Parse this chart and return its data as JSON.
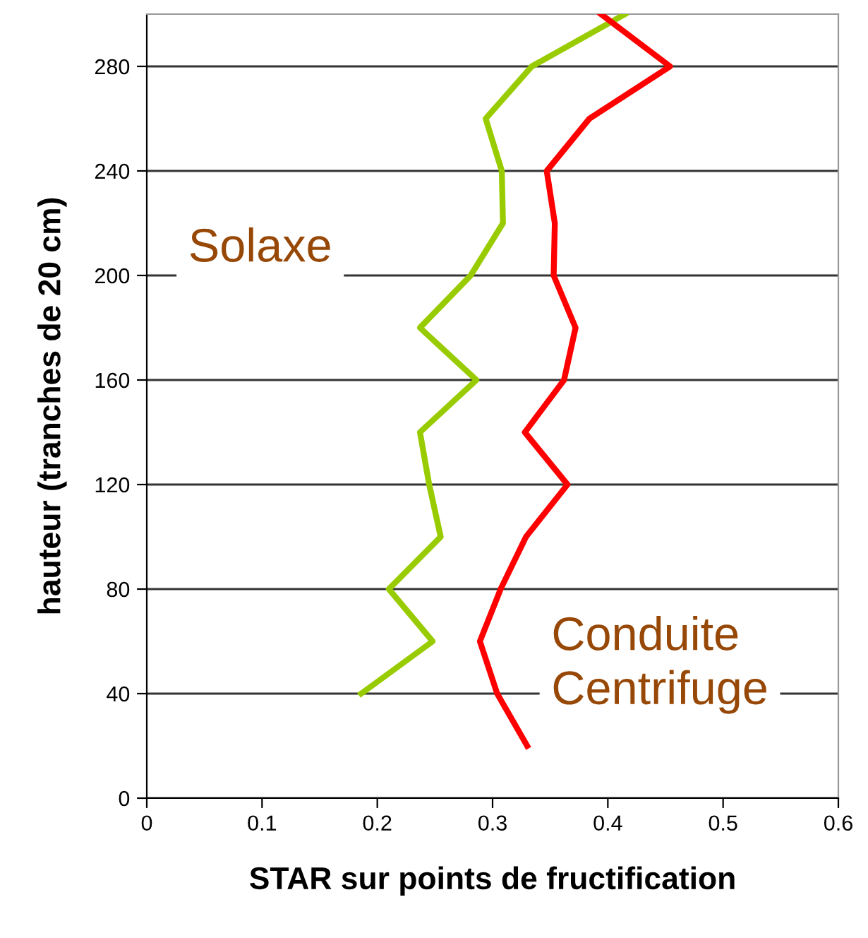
{
  "chart_data": {
    "type": "line",
    "xlabel": "STAR sur points de fructification",
    "ylabel": "hauteur (tranches de 20 cm)",
    "xlim": [
      0,
      0.6
    ],
    "xticks": [
      0,
      0.1,
      0.2,
      0.3,
      0.4,
      0.5,
      0.6
    ],
    "ylim": [
      0,
      300
    ],
    "yticks": [
      0,
      40,
      80,
      120,
      160,
      200,
      240,
      280
    ],
    "grid": "y",
    "marker": "none",
    "line_style": "solid",
    "series": [
      {
        "name": "Solaxe",
        "color": "#99cc00",
        "x": [
          0.186,
          0.248,
          0.21,
          0.255,
          0.245,
          0.237,
          0.286,
          0.237,
          0.281,
          0.309,
          0.308,
          0.294,
          0.334,
          0.415
        ],
        "values": [
          40,
          60,
          80,
          100,
          120,
          140,
          160,
          180,
          200,
          220,
          240,
          260,
          280,
          300
        ]
      },
      {
        "name": "Conduite\nCentrifuge",
        "color": "#ff0000",
        "x": [
          0.33,
          0.304,
          0.289,
          0.307,
          0.329,
          0.365,
          0.328,
          0.362,
          0.372,
          0.353,
          0.354,
          0.347,
          0.384,
          0.454,
          0.394
        ],
        "values": [
          20,
          40,
          60,
          80,
          100,
          120,
          140,
          160,
          180,
          200,
          220,
          240,
          260,
          280,
          300
        ]
      }
    ]
  }
}
